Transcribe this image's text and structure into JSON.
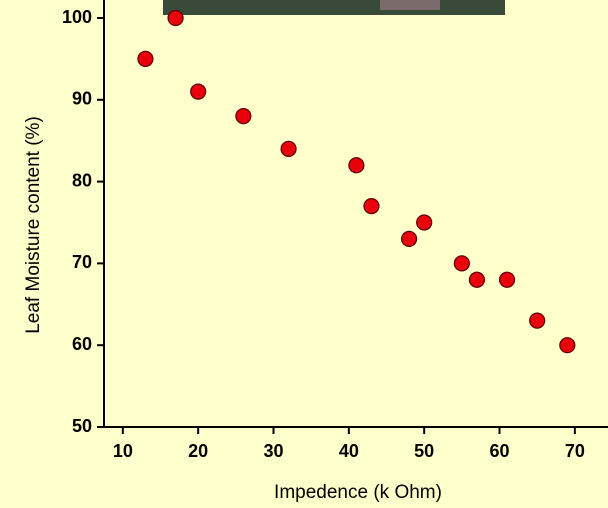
{
  "chart_data": {
    "type": "scatter",
    "x_label": "Impedence (k Ohm)",
    "y_label": "Leaf Moisture content (%)",
    "x": [
      13,
      17,
      20,
      26,
      32,
      41,
      43,
      48,
      50,
      55,
      57,
      61,
      65,
      69
    ],
    "values": [
      95,
      100,
      91,
      88,
      84,
      82,
      77,
      73,
      75,
      70,
      68,
      68,
      63,
      60
    ],
    "color": "#e8000b",
    "xlim": [
      7.5,
      74.4
    ],
    "ylim": [
      50,
      100
    ],
    "xticks": [
      10,
      20,
      30,
      40,
      50,
      60,
      70
    ],
    "yticks": [
      50,
      60,
      70,
      80,
      90,
      100
    ]
  }
}
